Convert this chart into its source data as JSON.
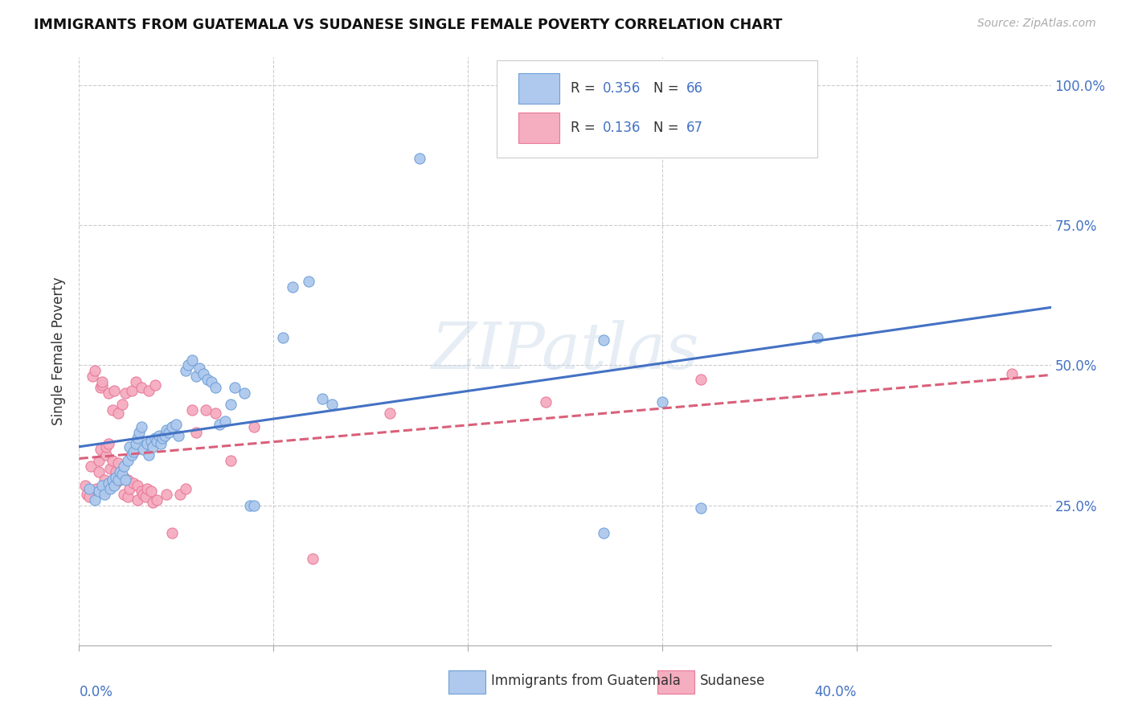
{
  "title": "IMMIGRANTS FROM GUATEMALA VS SUDANESE SINGLE FEMALE POVERTY CORRELATION CHART",
  "source": "Source: ZipAtlas.com",
  "ylabel": "Single Female Poverty",
  "legend1_label_R": "R = ",
  "legend1_label_Rval": "0.356",
  "legend1_label_N": "  N = ",
  "legend1_label_Nval": "66",
  "legend2_label_R": "R = ",
  "legend2_label_Rval": "0.136",
  "legend2_label_N": "  N = ",
  "legend2_label_Nval": "67",
  "scatter1_color": "#aec9ed",
  "scatter1_edge": "#6fa0d8",
  "scatter2_color": "#f5adc0",
  "scatter2_edge": "#e87898",
  "line1_color": "#4472c4",
  "line2_color": "#d9607a",
  "val_color": "#4472c4",
  "text_color": "#333333",
  "axis_color": "#4472c4",
  "background_color": "#ffffff",
  "grid_color": "#cccccc",
  "watermark": "ZIPatlas",
  "bottom_label1": "Immigrants from Guatemala",
  "bottom_label2": "Sudanese",
  "guatemala_scatter": [
    [
      0.5,
      28.0
    ],
    [
      0.8,
      26.0
    ],
    [
      1.0,
      27.5
    ],
    [
      1.2,
      28.5
    ],
    [
      1.3,
      27.0
    ],
    [
      1.5,
      29.0
    ],
    [
      1.6,
      28.0
    ],
    [
      1.7,
      29.5
    ],
    [
      1.8,
      28.5
    ],
    [
      1.9,
      30.0
    ],
    [
      2.0,
      29.5
    ],
    [
      2.1,
      31.0
    ],
    [
      2.2,
      30.5
    ],
    [
      2.3,
      32.0
    ],
    [
      2.4,
      29.5
    ],
    [
      2.5,
      33.0
    ],
    [
      2.6,
      35.5
    ],
    [
      2.7,
      34.0
    ],
    [
      2.8,
      34.5
    ],
    [
      2.9,
      36.0
    ],
    [
      3.0,
      37.0
    ],
    [
      3.1,
      38.0
    ],
    [
      3.2,
      39.0
    ],
    [
      3.3,
      35.0
    ],
    [
      3.5,
      36.0
    ],
    [
      3.6,
      34.0
    ],
    [
      3.7,
      36.5
    ],
    [
      3.8,
      35.5
    ],
    [
      3.9,
      37.0
    ],
    [
      4.0,
      36.5
    ],
    [
      4.1,
      37.5
    ],
    [
      4.2,
      36.0
    ],
    [
      4.3,
      37.0
    ],
    [
      4.4,
      37.5
    ],
    [
      4.5,
      38.5
    ],
    [
      4.6,
      38.0
    ],
    [
      4.8,
      39.0
    ],
    [
      5.0,
      39.5
    ],
    [
      5.1,
      37.5
    ],
    [
      5.5,
      49.0
    ],
    [
      5.6,
      50.0
    ],
    [
      5.8,
      51.0
    ],
    [
      6.0,
      48.0
    ],
    [
      6.2,
      49.5
    ],
    [
      6.4,
      48.5
    ],
    [
      6.6,
      47.5
    ],
    [
      6.8,
      47.0
    ],
    [
      7.0,
      46.0
    ],
    [
      7.2,
      39.5
    ],
    [
      7.5,
      40.0
    ],
    [
      7.8,
      43.0
    ],
    [
      8.0,
      46.0
    ],
    [
      8.5,
      45.0
    ],
    [
      8.8,
      25.0
    ],
    [
      9.0,
      25.0
    ],
    [
      10.5,
      55.0
    ],
    [
      11.0,
      64.0
    ],
    [
      11.8,
      65.0
    ],
    [
      12.5,
      44.0
    ],
    [
      13.0,
      43.0
    ],
    [
      17.5,
      87.0
    ],
    [
      27.0,
      54.5
    ],
    [
      30.0,
      43.5
    ],
    [
      32.0,
      24.5
    ],
    [
      27.0,
      20.0
    ],
    [
      38.0,
      55.0
    ]
  ],
  "sudanese_scatter": [
    [
      0.3,
      28.5
    ],
    [
      0.4,
      27.0
    ],
    [
      0.5,
      26.5
    ],
    [
      0.6,
      32.0
    ],
    [
      0.7,
      48.0
    ],
    [
      0.8,
      49.0
    ],
    [
      0.9,
      28.0
    ],
    [
      1.0,
      31.0
    ],
    [
      1.0,
      33.0
    ],
    [
      1.1,
      35.0
    ],
    [
      1.1,
      46.0
    ],
    [
      1.2,
      46.5
    ],
    [
      1.2,
      47.0
    ],
    [
      1.3,
      27.5
    ],
    [
      1.3,
      29.5
    ],
    [
      1.4,
      34.0
    ],
    [
      1.4,
      35.5
    ],
    [
      1.5,
      36.0
    ],
    [
      1.5,
      45.0
    ],
    [
      1.6,
      28.5
    ],
    [
      1.6,
      31.5
    ],
    [
      1.7,
      33.0
    ],
    [
      1.7,
      42.0
    ],
    [
      1.8,
      45.5
    ],
    [
      1.9,
      29.0
    ],
    [
      1.9,
      31.0
    ],
    [
      2.0,
      32.5
    ],
    [
      2.0,
      41.5
    ],
    [
      2.1,
      29.5
    ],
    [
      2.1,
      30.5
    ],
    [
      2.2,
      43.0
    ],
    [
      2.3,
      27.0
    ],
    [
      2.3,
      30.0
    ],
    [
      2.4,
      45.0
    ],
    [
      2.5,
      26.5
    ],
    [
      2.5,
      29.5
    ],
    [
      2.6,
      28.0
    ],
    [
      2.7,
      45.5
    ],
    [
      2.8,
      29.0
    ],
    [
      2.9,
      47.0
    ],
    [
      3.0,
      26.0
    ],
    [
      3.0,
      28.5
    ],
    [
      3.2,
      27.5
    ],
    [
      3.2,
      46.0
    ],
    [
      3.3,
      27.0
    ],
    [
      3.4,
      26.5
    ],
    [
      3.5,
      28.0
    ],
    [
      3.6,
      45.5
    ],
    [
      3.7,
      27.5
    ],
    [
      3.8,
      25.5
    ],
    [
      3.9,
      46.5
    ],
    [
      4.0,
      26.0
    ],
    [
      4.5,
      27.0
    ],
    [
      4.8,
      20.0
    ],
    [
      5.2,
      27.0
    ],
    [
      5.5,
      28.0
    ],
    [
      5.8,
      42.0
    ],
    [
      6.0,
      38.0
    ],
    [
      6.5,
      42.0
    ],
    [
      7.0,
      41.5
    ],
    [
      7.8,
      33.0
    ],
    [
      9.0,
      39.0
    ],
    [
      12.0,
      15.5
    ],
    [
      16.0,
      41.5
    ],
    [
      24.0,
      43.5
    ],
    [
      32.0,
      47.5
    ],
    [
      48.0,
      48.5
    ]
  ],
  "xlim_data": [
    0,
    50
  ],
  "ylim_data": [
    0,
    105
  ],
  "xtick_data": [
    0,
    10,
    20,
    30,
    40
  ],
  "xtick_labels": [
    "0.0%",
    "",
    "",
    "",
    "40.0%"
  ],
  "ytick_data": [
    0,
    25,
    50,
    75,
    100
  ],
  "ytick_labels": [
    "",
    "25.0%",
    "50.0%",
    "75.0%",
    "100.0%"
  ]
}
